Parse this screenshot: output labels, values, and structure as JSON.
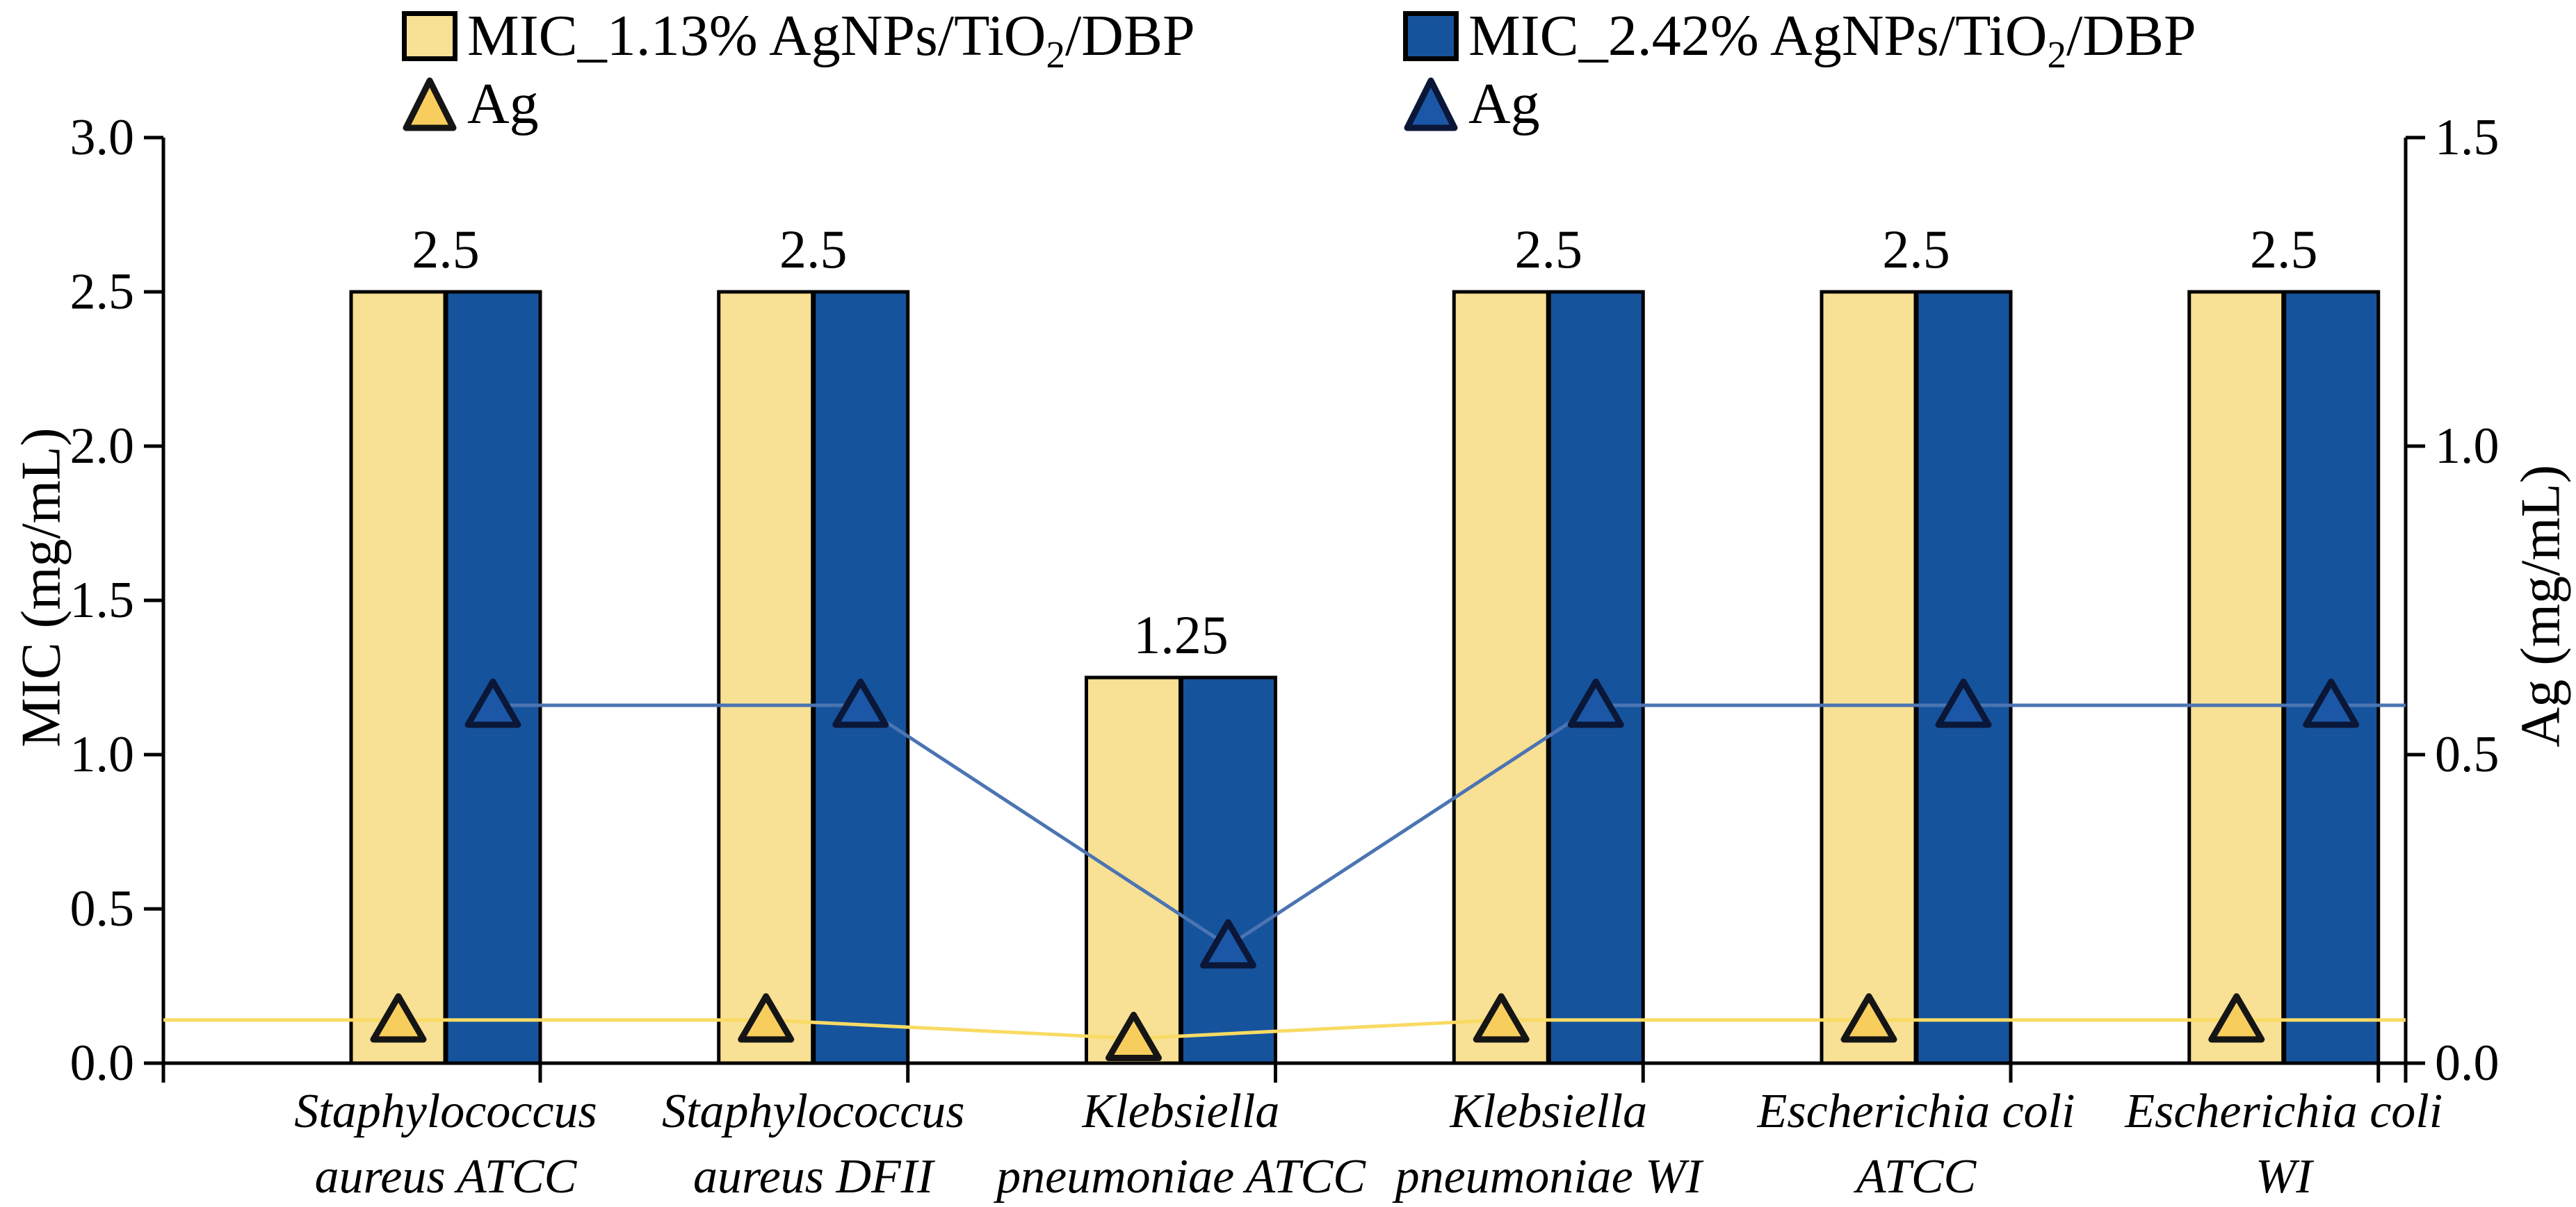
{
  "figure_colors": {
    "bar_yellow": "#F8E094",
    "bar_blue": "#16539D",
    "marker_yellow_fill": "#F7CE5D",
    "marker_blue_fill": "#1B57A6",
    "marker_yellow_stroke": "#151515",
    "marker_blue_stroke": "#0B1738",
    "line_yellow": "#F9DB64",
    "line_blue": "#4C74B2",
    "axis": "#000000",
    "background": "#FFFFFF"
  },
  "legend": {
    "items": [
      {
        "id": "mic1",
        "swatch": "square",
        "color": "#F8E094",
        "pre": "MIC_1.13% AgNPs/TiO",
        "sub": "2",
        "post": "/DBP"
      },
      {
        "id": "ag1",
        "swatch": "triangle",
        "color": "#F7CE5D",
        "label": "Ag"
      },
      {
        "id": "mic2",
        "swatch": "square",
        "color": "#16539D",
        "pre": "MIC_2.42% AgNPs/TiO",
        "sub": "2",
        "post": "/DBP"
      },
      {
        "id": "ag2",
        "swatch": "triangle",
        "color": "#1B57A6",
        "label": "Ag"
      }
    ]
  },
  "chart_data": {
    "type": "bar",
    "title": "",
    "categories_two_line": [
      [
        "Staphylococcus",
        "aureus ATCC"
      ],
      [
        "Staphylococcus",
        "aureus DFII"
      ],
      [
        "Klebsiella",
        "pneumoniae ATCC"
      ],
      [
        "Klebsiella",
        "pneumoniae WI"
      ],
      [
        "Escherichia coli",
        "ATCC"
      ],
      [
        "Escherichia coli",
        "WI"
      ]
    ],
    "categories": [
      "Staphylococcus aureus ATCC",
      "Staphylococcus aureus DFII",
      "Klebsiella pneumoniae ATCC",
      "Klebsiella pneumoniae WI",
      "Escherichia coli ATCC",
      "Escherichia coli WI"
    ],
    "series": [
      {
        "name": "MIC_1.13% AgNPs/TiO2/DBP",
        "type": "bar",
        "axis": "left",
        "fill": "#F8E094",
        "stroke": "#000000",
        "values": [
          2.5,
          2.5,
          1.25,
          2.5,
          2.5,
          2.5
        ]
      },
      {
        "name": "MIC_2.42% AgNPs/TiO2/DBP",
        "type": "bar",
        "axis": "left",
        "fill": "#16539D",
        "stroke": "#000000",
        "values": [
          2.5,
          2.5,
          1.25,
          2.5,
          2.5,
          2.5
        ]
      },
      {
        "name": "Ag (1.13% AgNPs/TiO2/DBP)",
        "type": "line-triangle",
        "axis": "right",
        "line_color": "#F9DB64",
        "marker_fill": "#F7CE5D",
        "marker_stroke": "#151515",
        "starts_at_axis": true,
        "ends_at_axis": true,
        "values": [
          0.07,
          0.07,
          0.04,
          0.07,
          0.07,
          0.07
        ]
      },
      {
        "name": "Ag (2.42% AgNPs/TiO2/DBP)",
        "type": "line-triangle",
        "axis": "right",
        "line_color": "#4C74B2",
        "marker_fill": "#1B57A6",
        "marker_stroke": "#0B1738",
        "starts_at_axis": false,
        "ends_at_axis": true,
        "values": [
          0.58,
          0.58,
          0.19,
          0.58,
          0.58,
          0.58
        ]
      }
    ],
    "bar_labels": [
      "2.5",
      "2.5",
      "1.25",
      "2.5",
      "2.5",
      "2.5"
    ],
    "left_axis": {
      "title": "MIC (mg/mL)",
      "min": 0,
      "max": 3.0,
      "tick_labels": [
        "0.0",
        "0.5",
        "1.0",
        "1.5",
        "2.0",
        "2.5",
        "3.0"
      ]
    },
    "right_axis": {
      "title": "Ag (mg/mL)",
      "min": 0,
      "max": 1.5,
      "tick_labels": [
        "0.0",
        "0.5",
        "1.0",
        "1.5"
      ]
    },
    "grid": false,
    "legend_position": "top"
  }
}
